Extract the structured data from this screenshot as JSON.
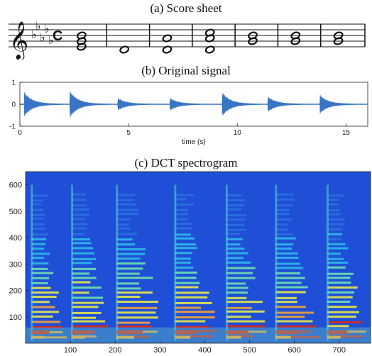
{
  "titles": {
    "score": "(a) Score sheet",
    "signal": "(b) Original signal",
    "spectrogram": "(c) DCT spectrogram"
  },
  "colors": {
    "signal": "#3a74c4",
    "spectrogram_background": "#1e4fd6",
    "spectrogram_hot": "#d6281c"
  },
  "chart_data": [
    {
      "type": "score",
      "clef": "treble",
      "key_signature": "5 flats",
      "time_signature": "C",
      "measures": [
        {
          "chord": [
            "E4",
            "G4",
            "B4"
          ]
        },
        {
          "chord": [
            "D4"
          ]
        },
        {
          "chord": [
            "D4",
            "A4"
          ]
        },
        {
          "chord": [
            "D4",
            "A4",
            "C5"
          ]
        },
        {
          "chord": [
            "G4",
            "B4"
          ]
        },
        {
          "chord": [
            "G4",
            "B4"
          ]
        },
        {
          "chord": [
            "G4",
            "B4"
          ]
        }
      ]
    },
    {
      "type": "line",
      "xlabel": "time (s)",
      "xlim": [
        0,
        16
      ],
      "ylim": [
        -1,
        1
      ],
      "xticks": [
        0,
        5,
        10,
        15
      ],
      "yticks": [
        -1,
        0,
        1
      ],
      "note_onsets_s": [
        0.2,
        2.3,
        4.5,
        6.9,
        9.3,
        11.4,
        13.8
      ],
      "peak_amplitude": [
        0.55,
        0.6,
        0.28,
        0.28,
        0.55,
        0.35,
        0.42
      ]
    },
    {
      "type": "heatmap",
      "xticks": [
        100,
        200,
        300,
        400,
        500,
        600,
        700
      ],
      "yticks": [
        100,
        200,
        300,
        400,
        500,
        600
      ],
      "xlim": [
        0,
        770
      ],
      "ylim": [
        0,
        650
      ],
      "note_onset_frames": [
        10,
        100,
        200,
        330,
        445,
        555,
        670
      ]
    }
  ]
}
